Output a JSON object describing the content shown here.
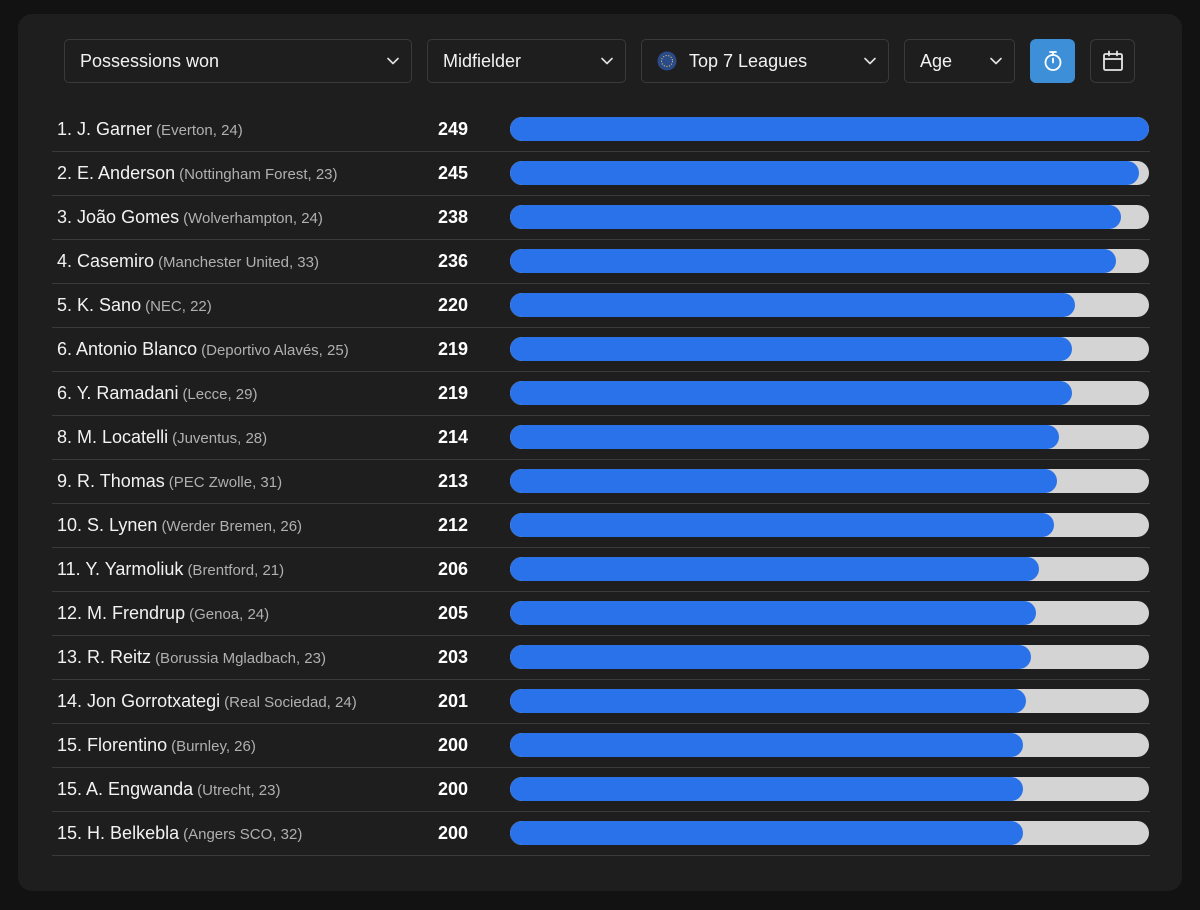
{
  "filters": {
    "metric": "Possessions won",
    "position": "Midfielder",
    "league": "Top 7 Leagues",
    "age": "Age"
  },
  "colors": {
    "bar_fill": "#2a72ea",
    "bar_track": "#d4d4d4",
    "active_button": "#3d8fd8"
  },
  "max_value": 249,
  "rows": [
    {
      "rank": "1.",
      "name": "J. Garner",
      "meta": "(Everton, 24)",
      "value": 249
    },
    {
      "rank": "2.",
      "name": "E. Anderson",
      "meta": "(Nottingham Forest, 23)",
      "value": 245
    },
    {
      "rank": "3.",
      "name": "João Gomes",
      "meta": "(Wolverhampton, 24)",
      "value": 238
    },
    {
      "rank": "4.",
      "name": "Casemiro",
      "meta": "(Manchester United, 33)",
      "value": 236
    },
    {
      "rank": "5.",
      "name": "K. Sano",
      "meta": "(NEC, 22)",
      "value": 220
    },
    {
      "rank": "6.",
      "name": "Antonio Blanco",
      "meta": "(Deportivo Alavés, 25)",
      "value": 219
    },
    {
      "rank": "6.",
      "name": "Y. Ramadani",
      "meta": "(Lecce, 29)",
      "value": 219
    },
    {
      "rank": "8.",
      "name": "M. Locatelli",
      "meta": "(Juventus, 28)",
      "value": 214
    },
    {
      "rank": "9.",
      "name": "R. Thomas",
      "meta": "(PEC Zwolle, 31)",
      "value": 213
    },
    {
      "rank": "10.",
      "name": "S. Lynen",
      "meta": "(Werder Bremen, 26)",
      "value": 212
    },
    {
      "rank": "11.",
      "name": "Y. Yarmoliuk",
      "meta": "(Brentford, 21)",
      "value": 206
    },
    {
      "rank": "12.",
      "name": "M. Frendrup",
      "meta": "(Genoa, 24)",
      "value": 205
    },
    {
      "rank": "13.",
      "name": "R. Reitz",
      "meta": "(Borussia Mgladbach, 23)",
      "value": 203
    },
    {
      "rank": "14.",
      "name": "Jon Gorrotxategi",
      "meta": "(Real Sociedad, 24)",
      "value": 201
    },
    {
      "rank": "15.",
      "name": "Florentino",
      "meta": "(Burnley, 26)",
      "value": 200
    },
    {
      "rank": "15.",
      "name": "A. Engwanda",
      "meta": "(Utrecht, 23)",
      "value": 200
    },
    {
      "rank": "15.",
      "name": "H. Belkebla",
      "meta": "(Angers SCO, 32)",
      "value": 200
    }
  ]
}
